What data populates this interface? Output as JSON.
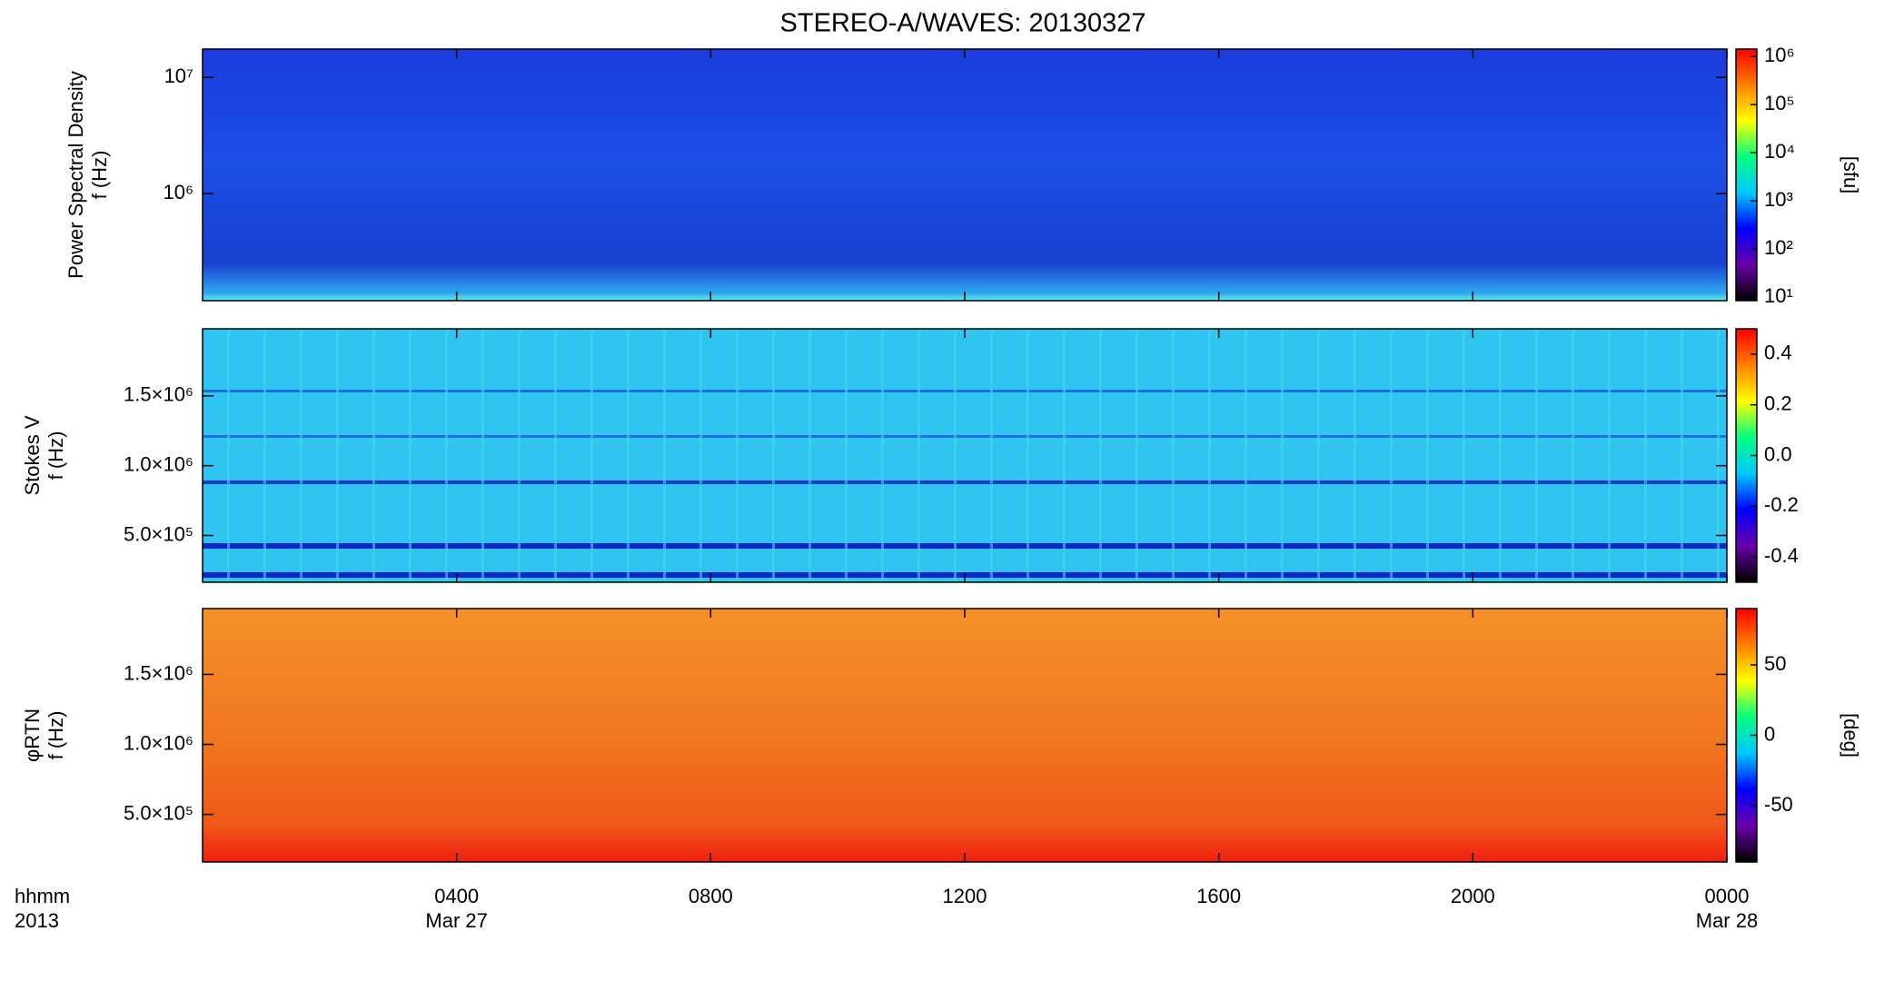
{
  "chart_data": [
    {
      "type": "spectrogram",
      "title": "STEREO-A/WAVES: 20130327",
      "ylabel": [
        "Power Spectral Density",
        "f (Hz)"
      ],
      "ylog": true,
      "ylim": [
        120000,
        17500000
      ],
      "yticks": [
        {
          "value": 1000000,
          "label": "10⁶"
        },
        {
          "value": 10000000,
          "label": "10⁷"
        }
      ],
      "xlim": [
        0,
        24
      ],
      "clog": true,
      "clim": [
        8.4,
        1430000
      ],
      "cticks": [
        {
          "value": 10,
          "label": "10¹"
        },
        {
          "value": 100,
          "label": "10²"
        },
        {
          "value": 1000,
          "label": "10³"
        },
        {
          "value": 10000,
          "label": "10⁴"
        },
        {
          "value": 100000,
          "label": "10⁵"
        },
        {
          "value": 1000000,
          "label": "10⁶"
        }
      ],
      "clabel": "[sfu]",
      "colormap": [
        "#000000",
        "#6a00a8",
        "#0000ff",
        "#00c8ff",
        "#00ff80",
        "#ffff00",
        "#ff8000",
        "#ff0000"
      ]
    },
    {
      "type": "spectrogram",
      "ylabel": [
        "Stokes V",
        "f (Hz)"
      ],
      "ylog": false,
      "ylim": [
        165000,
        1980000
      ],
      "yticks": [
        {
          "value": 500000,
          "label": "5.0×10⁵"
        },
        {
          "value": 1000000,
          "label": "1.0×10⁶"
        },
        {
          "value": 1500000,
          "label": "1.5×10⁶"
        }
      ],
      "xlim": [
        0,
        24
      ],
      "clog": false,
      "clim": [
        -0.5,
        0.5
      ],
      "cticks": [
        -0.4,
        -0.2,
        {
          "value": 0,
          "label": "0.0"
        },
        0.2,
        0.4
      ],
      "colormap": [
        "#000000",
        "#6a00a8",
        "#0000ff",
        "#00c8ff",
        "#00ff80",
        "#ffff00",
        "#ff8000",
        "#ff0000"
      ]
    },
    {
      "type": "spectrogram",
      "ylabel": [
        "φRTN",
        "f (Hz)"
      ],
      "ylog": false,
      "ylim": [
        160000,
        1970000
      ],
      "yticks": [
        {
          "value": 500000,
          "label": "5.0×10⁵"
        },
        {
          "value": 1000000,
          "label": "1.0×10⁶"
        },
        {
          "value": 1500000,
          "label": "1.5×10⁶"
        }
      ],
      "xlim": [
        0,
        24
      ],
      "xticks": [
        {
          "value": 4,
          "label": "0400"
        },
        {
          "value": 8,
          "label": "0800"
        },
        {
          "value": 12,
          "label": "1200"
        },
        {
          "value": 16,
          "label": "1600"
        },
        {
          "value": 20,
          "label": "2000"
        },
        {
          "value": 24,
          "label": "0000"
        }
      ],
      "x_sublabels": [
        {
          "value": 4,
          "label": "Mar 27"
        },
        {
          "value": 24,
          "label": "Mar 28"
        }
      ],
      "x_axis_label": [
        "hhmm",
        "2013"
      ],
      "clog": false,
      "clim": [
        -90,
        90
      ],
      "cticks": [
        -50,
        0,
        50
      ],
      "clabel": "[deg]",
      "colormap": [
        "#000000",
        "#6a00a8",
        "#0000ff",
        "#00c8ff",
        "#00ff80",
        "#ffff00",
        "#ff8000",
        "#ff0000"
      ]
    }
  ]
}
